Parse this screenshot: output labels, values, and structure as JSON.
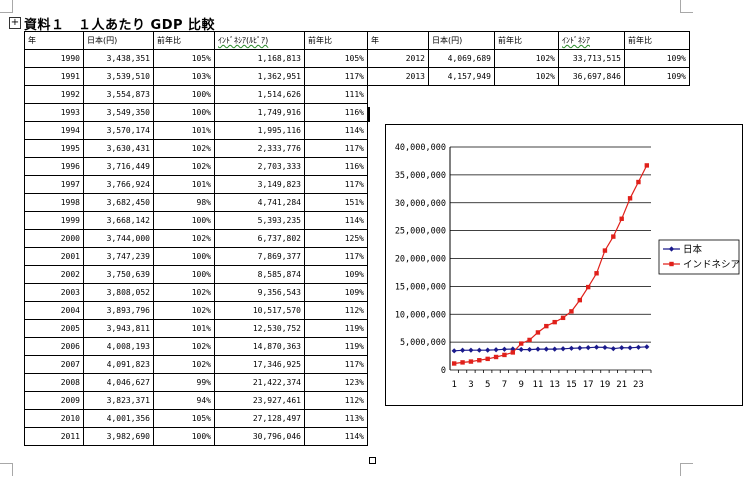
{
  "document": {
    "title": "資料１　１人あたり GDP 比較"
  },
  "table_headers": [
    "年",
    "日本(円)",
    "前年比",
    "ｲﾝﾄﾞﾈｼｱ(ﾙﾋﾟｱ)",
    "前年比"
  ],
  "table_rows": [
    [
      "1990",
      "3,438,351",
      "105%",
      "1,168,813",
      "105%"
    ],
    [
      "1991",
      "3,539,510",
      "103%",
      "1,362,951",
      "117%"
    ],
    [
      "1992",
      "3,554,873",
      "100%",
      "1,514,626",
      "111%"
    ],
    [
      "1993",
      "3,549,350",
      "100%",
      "1,749,916",
      "116%"
    ],
    [
      "1994",
      "3,570,174",
      "101%",
      "1,995,116",
      "114%"
    ],
    [
      "1995",
      "3,630,431",
      "102%",
      "2,333,776",
      "117%"
    ],
    [
      "1996",
      "3,716,449",
      "102%",
      "2,703,333",
      "116%"
    ],
    [
      "1997",
      "3,766,924",
      "101%",
      "3,149,823",
      "117%"
    ],
    [
      "1998",
      "3,682,450",
      "98%",
      "4,741,284",
      "151%"
    ],
    [
      "1999",
      "3,668,142",
      "100%",
      "5,393,235",
      "114%"
    ],
    [
      "2000",
      "3,744,000",
      "102%",
      "6,737,802",
      "125%"
    ],
    [
      "2001",
      "3,747,239",
      "100%",
      "7,869,377",
      "117%"
    ],
    [
      "2002",
      "3,750,639",
      "100%",
      "8,585,874",
      "109%"
    ],
    [
      "2003",
      "3,808,052",
      "102%",
      "9,356,543",
      "109%"
    ],
    [
      "2004",
      "3,893,796",
      "102%",
      "10,517,570",
      "112%"
    ],
    [
      "2005",
      "3,943,811",
      "101%",
      "12,530,752",
      "119%"
    ],
    [
      "2006",
      "4,008,193",
      "102%",
      "14,870,363",
      "119%"
    ],
    [
      "2007",
      "4,091,823",
      "102%",
      "17,346,925",
      "117%"
    ],
    [
      "2008",
      "4,046,627",
      "99%",
      "21,422,374",
      "123%"
    ],
    [
      "2009",
      "3,823,371",
      "94%",
      "23,927,461",
      "112%"
    ],
    [
      "2010",
      "4,001,356",
      "105%",
      "27,128,497",
      "113%"
    ],
    [
      "2011",
      "3,982,690",
      "100%",
      "30,796,046",
      "114%"
    ]
  ],
  "right_table_headers": [
    "年",
    "日本(円)",
    "前年比",
    "ｲﾝﾄﾞﾈｼｱ",
    "前年比"
  ],
  "right_table_rows": [
    [
      "2012",
      "4,069,689",
      "102%",
      "33,713,515",
      "109%"
    ],
    [
      "2013",
      "4,157,949",
      "102%",
      "36,697,846",
      "109%"
    ]
  ],
  "chart_data": {
    "type": "line",
    "title": "",
    "xlabel": "",
    "ylabel": "",
    "x": [
      1,
      2,
      3,
      4,
      5,
      6,
      7,
      8,
      9,
      10,
      11,
      12,
      13,
      14,
      15,
      16,
      17,
      18,
      19,
      20,
      21,
      22,
      23,
      24
    ],
    "x_tick_labels": [
      "1",
      "3",
      "5",
      "7",
      "9",
      "11",
      "13",
      "15",
      "17",
      "19",
      "21",
      "23"
    ],
    "y_tick_labels": [
      "0",
      "5,000,000",
      "10,000,000",
      "15,000,000",
      "20,000,000",
      "25,000,000",
      "30,000,000",
      "35,000,000",
      "40,000,000"
    ],
    "ylim": [
      0,
      40000000
    ],
    "grid": "horizontal",
    "legend_position": "right",
    "series": [
      {
        "name": "日本",
        "color": "#1a1a8c",
        "marker": "diamond",
        "values": [
          3438351,
          3539510,
          3554873,
          3549350,
          3570174,
          3630431,
          3716449,
          3766924,
          3682450,
          3668142,
          3744000,
          3747239,
          3750639,
          3808052,
          3893796,
          3943811,
          4008193,
          4091823,
          4046627,
          3823371,
          4001356,
          3982690,
          4069689,
          4157949
        ]
      },
      {
        "name": "インドネシア",
        "color": "#e0201a",
        "marker": "square",
        "values": [
          1168813,
          1362951,
          1514626,
          1749916,
          1995116,
          2333776,
          2703333,
          3149823,
          4741284,
          5393235,
          6737802,
          7869377,
          8585874,
          9356543,
          10517570,
          12530752,
          14870363,
          17346925,
          21422374,
          23927461,
          27128497,
          30796046,
          33713515,
          36697846
        ]
      }
    ]
  }
}
